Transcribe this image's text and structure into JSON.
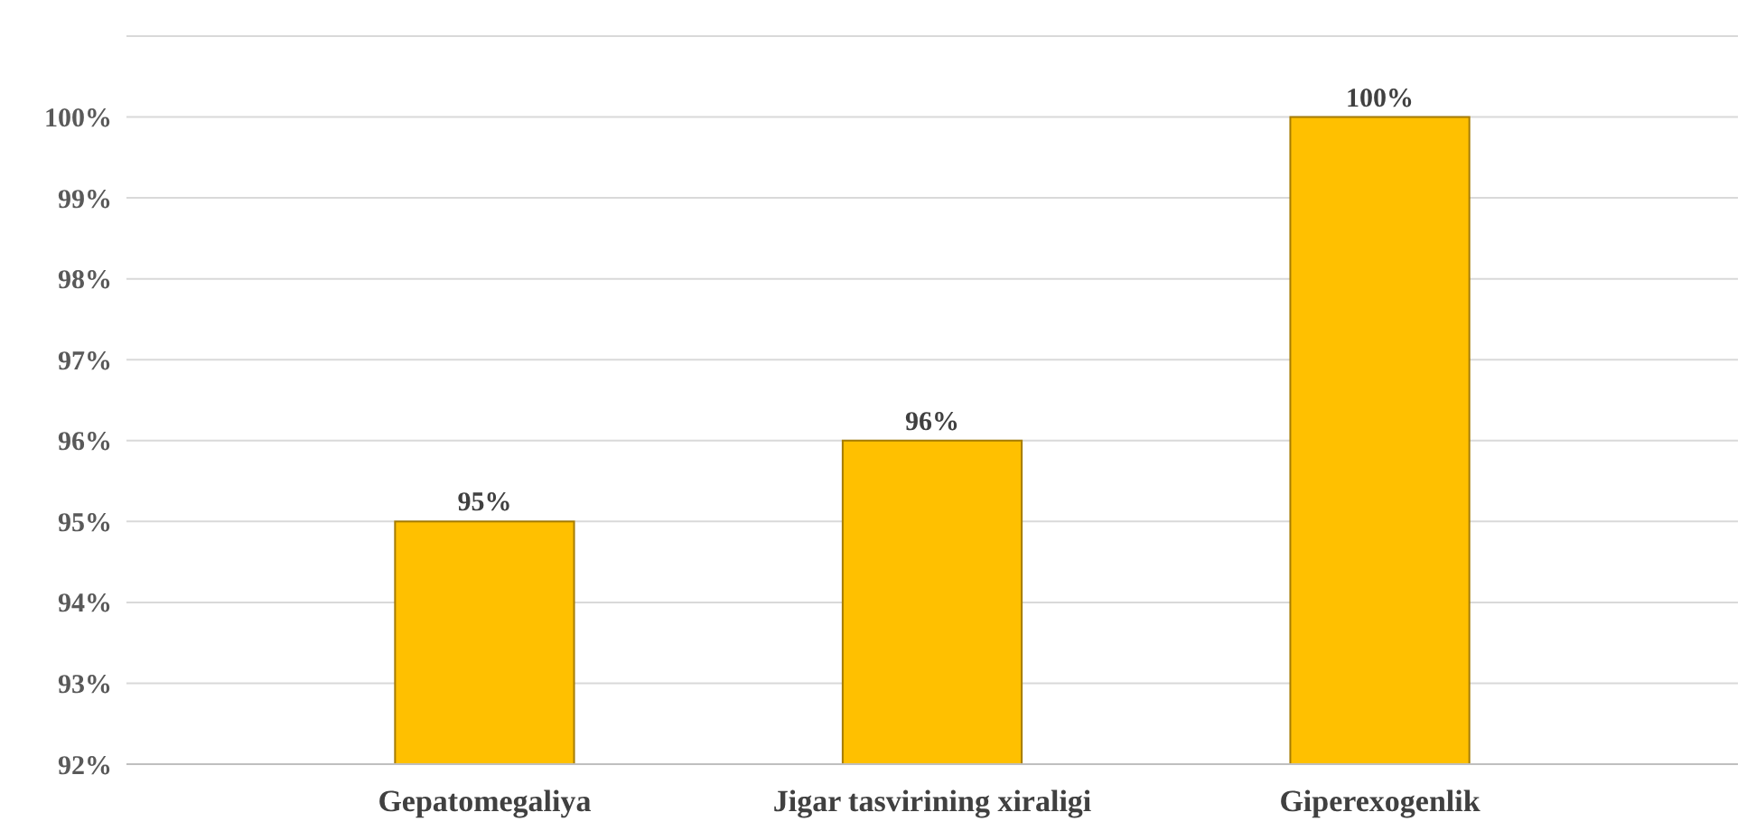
{
  "chart_data": {
    "type": "bar",
    "categories": [
      "Gepatomegaliya",
      "Jigar tasvirining xiraligi",
      "Giperexogenlik"
    ],
    "values": [
      95,
      96,
      100
    ],
    "color": "#ffc000",
    "value_labels": [
      "95%",
      "96%",
      "100%"
    ],
    "ylim": [
      92,
      101
    ],
    "yticks": [
      {
        "value": 92,
        "label": "92%"
      },
      {
        "value": 93,
        "label": "93%"
      },
      {
        "value": 94,
        "label": "94%"
      },
      {
        "value": 95,
        "label": "95%"
      },
      {
        "value": 96,
        "label": "96%"
      },
      {
        "value": 97,
        "label": "97%"
      },
      {
        "value": 98,
        "label": "98%"
      },
      {
        "value": 99,
        "label": "99%"
      },
      {
        "value": 100,
        "label": "100%"
      },
      {
        "value": 101,
        "label": null
      }
    ],
    "grid": "y"
  }
}
